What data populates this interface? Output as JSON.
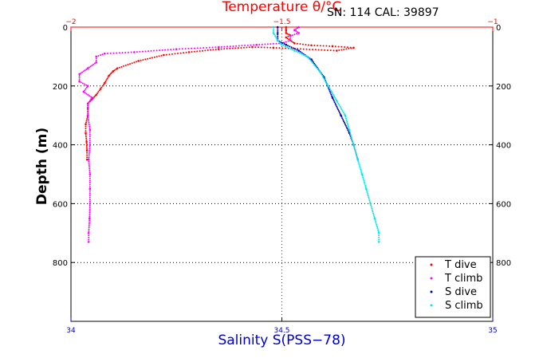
{
  "chart_data": {
    "type": "scatter",
    "title": "Temperature θ/°C",
    "annotation": "SN: 114  CAL: 39897",
    "ylabel": "Depth (m)",
    "xlabel_bottom": "Salinity S(PSS−78)",
    "xlabel_top": "Temperature θ/°C",
    "ylim": [
      1000,
      0
    ],
    "yticks": [
      0,
      200,
      400,
      600,
      800
    ],
    "ytick_labels": [
      "0",
      "200",
      "400",
      "600",
      "800"
    ],
    "x_bottom": {
      "lim": [
        34,
        35
      ],
      "ticks": [
        34,
        34.5,
        35
      ],
      "tick_labels": [
        "34",
        "34.5",
        "35"
      ]
    },
    "x_top": {
      "lim": [
        -2,
        -1
      ],
      "ticks": [
        -2,
        -1.5,
        -1
      ],
      "tick_labels": [
        "−2",
        "−1.5",
        "−1"
      ]
    },
    "grid": true,
    "legend_position": "bottom-right",
    "colors": {
      "t_dive": "#ff0000",
      "t_climb": "#ff00ff",
      "s_dive": "#0000aa",
      "s_climb": "#00e5ee",
      "temp_axis": "#ff0000",
      "sal_axis": "#0000cc",
      "grid": "#000000"
    },
    "series": [
      {
        "name": "T dive",
        "axis": "temperature",
        "color": "#ff0000",
        "points": [
          [
            -1.49,
            0
          ],
          [
            -1.49,
            10
          ],
          [
            -1.49,
            20
          ],
          [
            -1.48,
            28
          ],
          [
            -1.49,
            35
          ],
          [
            -1.48,
            45
          ],
          [
            -1.47,
            55
          ],
          [
            -1.43,
            62
          ],
          [
            -1.38,
            65
          ],
          [
            -1.33,
            70
          ],
          [
            -1.37,
            80
          ],
          [
            -1.52,
            70
          ],
          [
            -1.57,
            68
          ],
          [
            -1.65,
            75
          ],
          [
            -1.72,
            85
          ],
          [
            -1.78,
            95
          ],
          [
            -1.84,
            115
          ],
          [
            -1.89,
            140
          ],
          [
            -1.9,
            150
          ],
          [
            -1.91,
            165
          ],
          [
            -1.92,
            190
          ],
          [
            -1.93,
            210
          ],
          [
            -1.94,
            230
          ],
          [
            -1.95,
            245
          ],
          [
            -1.96,
            260
          ],
          [
            -1.96,
            275
          ],
          [
            -1.96,
            300
          ],
          [
            -1.965,
            330
          ],
          [
            -1.965,
            360
          ],
          [
            -1.963,
            390
          ],
          [
            -1.962,
            420
          ],
          [
            -1.962,
            450
          ]
        ]
      },
      {
        "name": "T climb",
        "axis": "temperature",
        "color": "#ff00ff",
        "points": [
          [
            -1.46,
            0
          ],
          [
            -1.47,
            10
          ],
          [
            -1.46,
            20
          ],
          [
            -1.48,
            30
          ],
          [
            -1.48,
            45
          ],
          [
            -1.5,
            55
          ],
          [
            -1.56,
            60
          ],
          [
            -1.65,
            68
          ],
          [
            -1.75,
            75
          ],
          [
            -1.85,
            85
          ],
          [
            -1.92,
            90
          ],
          [
            -1.94,
            100
          ],
          [
            -1.94,
            120
          ],
          [
            -1.96,
            140
          ],
          [
            -1.98,
            160
          ],
          [
            -1.98,
            185
          ],
          [
            -1.96,
            200
          ],
          [
            -1.97,
            220
          ],
          [
            -1.95,
            240
          ],
          [
            -1.96,
            260
          ],
          [
            -1.96,
            300
          ],
          [
            -1.955,
            350
          ],
          [
            -1.955,
            400
          ],
          [
            -1.958,
            450
          ],
          [
            -1.955,
            500
          ],
          [
            -1.955,
            550
          ],
          [
            -1.955,
            600
          ],
          [
            -1.956,
            650
          ],
          [
            -1.958,
            700
          ],
          [
            -1.958,
            730
          ]
        ]
      },
      {
        "name": "S dive",
        "axis": "salinity",
        "color": "#0000aa",
        "points": [
          [
            34.49,
            0
          ],
          [
            34.49,
            20
          ],
          [
            34.49,
            45
          ],
          [
            34.51,
            60
          ],
          [
            34.54,
            80
          ],
          [
            34.57,
            110
          ],
          [
            34.6,
            170
          ],
          [
            34.62,
            240
          ],
          [
            34.64,
            300
          ],
          [
            34.66,
            360
          ],
          [
            34.67,
            400
          ],
          [
            34.68,
            450
          ]
        ]
      },
      {
        "name": "S climb",
        "axis": "salinity",
        "color": "#00e5ee",
        "points": [
          [
            34.48,
            0
          ],
          [
            34.48,
            20
          ],
          [
            34.49,
            45
          ],
          [
            34.5,
            60
          ],
          [
            34.53,
            80
          ],
          [
            34.56,
            100
          ],
          [
            34.59,
            150
          ],
          [
            34.61,
            200
          ],
          [
            34.63,
            250
          ],
          [
            34.65,
            300
          ],
          [
            34.66,
            350
          ],
          [
            34.67,
            400
          ],
          [
            34.68,
            450
          ],
          [
            34.69,
            500
          ],
          [
            34.7,
            550
          ],
          [
            34.71,
            600
          ],
          [
            34.72,
            650
          ],
          [
            34.73,
            700
          ],
          [
            34.73,
            730
          ]
        ]
      }
    ]
  }
}
